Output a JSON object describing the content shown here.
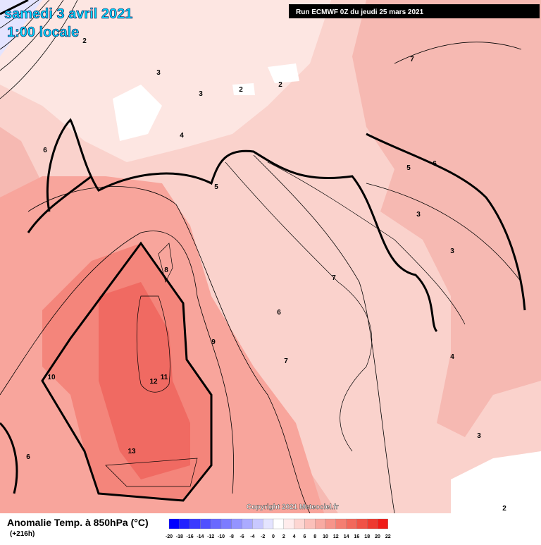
{
  "header": {
    "date": "samedi 3 avril 2021",
    "time": "1:00 locale",
    "run": "Run ECMWF 0Z du jeudi 25 mars 2021"
  },
  "footer": {
    "title": "Anomalie Temp. à 850hPa (°C)",
    "lead": "(+216h)",
    "copyright": "Copyright 2021 Meteociel.fr"
  },
  "colorbar": {
    "ticks": [
      -20,
      -18,
      -16,
      -14,
      -12,
      -10,
      -8,
      -6,
      -4,
      -2,
      0,
      2,
      4,
      6,
      8,
      10,
      12,
      14,
      16,
      18,
      20,
      22
    ],
    "colors": [
      "#0000ff",
      "#2020ff",
      "#3a3aff",
      "#5050ff",
      "#6868ff",
      "#7c7cff",
      "#9494ff",
      "#ababff",
      "#c8c8ff",
      "#e4e4ff",
      "#ffffff",
      "#ffecec",
      "#fdd6d2",
      "#fbc0ba",
      "#f8aaa2",
      "#f6948a",
      "#f47e72",
      "#f2685c",
      "#f05246",
      "#ee3a30",
      "#f01c18",
      "#ff0000"
    ]
  },
  "contour_labels": [
    "6",
    "5",
    "4",
    "3",
    "3",
    "2",
    "2",
    "2",
    "8",
    "7",
    "6",
    "9",
    "7",
    "10",
    "12",
    "11",
    "13",
    "6",
    "4",
    "3",
    "2",
    "5",
    "6",
    "7",
    "3",
    "3"
  ]
}
